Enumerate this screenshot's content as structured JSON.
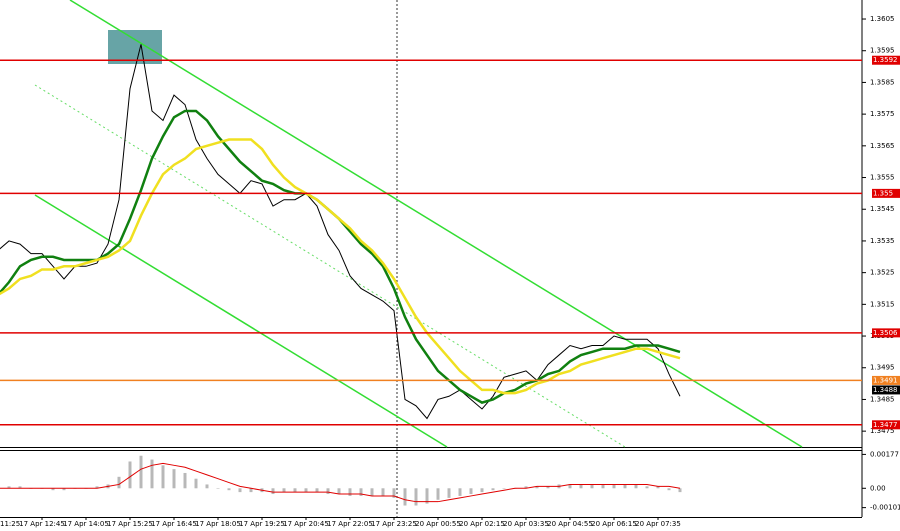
{
  "chart_data": [
    {
      "type": "line",
      "categories": [
        "11:25",
        null,
        null,
        null,
        "17 Apr 12:45",
        null,
        null,
        null,
        "17 Apr 14:05",
        null,
        null,
        null,
        "17 Apr 15:25",
        null,
        null,
        null,
        "17 Apr 16:45",
        null,
        null,
        null,
        "17 Apr 18:05",
        null,
        null,
        null,
        "17 Apr 19:25",
        null,
        null,
        null,
        "17 Apr 20:45",
        null,
        null,
        null,
        "17 Apr 22:05",
        null,
        null,
        null,
        "17 Apr 23:25",
        null,
        null,
        null,
        "20 Apr 00:55",
        null,
        null,
        null,
        "20 Apr 02:15",
        null,
        null,
        null,
        "20 Apr 03:35",
        null,
        null,
        null,
        "20 Apr 04:55",
        null,
        null,
        null,
        "20 Apr 06:15",
        null,
        null,
        null,
        "20 Apr 07:35",
        null,
        null
      ],
      "series": [
        {
          "color": "#000000",
          "values": [
            1.3532,
            1.3535,
            1.3534,
            1.3531,
            1.3531,
            1.3527,
            1.3523,
            1.3527,
            1.3527,
            1.3528,
            1.3534,
            1.3548,
            1.3583,
            1.3597,
            1.3576,
            1.3573,
            1.3581,
            1.3578,
            1.3567,
            1.3561,
            1.3556,
            1.3553,
            1.355,
            1.3554,
            1.3553,
            1.3546,
            1.3548,
            1.3548,
            1.355,
            1.3546,
            1.3537,
            1.3532,
            1.3524,
            1.352,
            1.3518,
            1.3516,
            1.3513,
            1.3485,
            1.3483,
            1.3479,
            1.3485,
            1.3486,
            1.3488,
            1.3485,
            1.3482,
            1.3486,
            1.3492,
            1.3493,
            1.3494,
            1.3491,
            1.3496,
            1.3499,
            1.3502,
            1.3501,
            1.3502,
            1.3502,
            1.3505,
            1.3504,
            1.3504,
            1.3504,
            1.3501,
            1.3493,
            1.3486
          ]
        },
        {
          "color": "#108010",
          "values": [
            1.3518,
            1.3522,
            1.3527,
            1.3529,
            1.353,
            1.353,
            1.3529,
            1.3529,
            1.3529,
            1.3529,
            1.3531,
            1.3534,
            1.3542,
            1.3551,
            1.3561,
            1.3568,
            1.3574,
            1.3576,
            1.3576,
            1.3573,
            1.3568,
            1.3564,
            1.356,
            1.3557,
            1.3554,
            1.3553,
            1.3551,
            1.355,
            1.355,
            1.3548,
            1.3545,
            1.3542,
            1.3538,
            1.3534,
            1.3531,
            1.3527,
            1.352,
            1.3511,
            1.3504,
            1.3499,
            1.3494,
            1.3491,
            1.3488,
            1.3486,
            1.3484,
            1.3485,
            1.3487,
            1.3488,
            1.349,
            1.3491,
            1.3493,
            1.3494,
            1.3497,
            1.3499,
            1.35,
            1.3501,
            1.3501,
            1.3501,
            1.3502,
            1.3502,
            1.3502,
            1.3501,
            1.35
          ]
        },
        {
          "color": "#f0e020",
          "values": [
            1.3518,
            1.352,
            1.3523,
            1.3524,
            1.3526,
            1.3526,
            1.3527,
            1.3527,
            1.3528,
            1.3529,
            1.353,
            1.3532,
            1.3535,
            1.3543,
            1.355,
            1.3556,
            1.3559,
            1.3561,
            1.3564,
            1.3565,
            1.3566,
            1.3567,
            1.3567,
            1.3567,
            1.3564,
            1.3559,
            1.3555,
            1.3552,
            1.355,
            1.3548,
            1.3545,
            1.3542,
            1.3539,
            1.3535,
            1.3532,
            1.3528,
            1.3523,
            1.3517,
            1.3511,
            1.3506,
            1.3502,
            1.3498,
            1.3494,
            1.3491,
            1.3488,
            1.3488,
            1.3487,
            1.3487,
            1.3488,
            1.349,
            1.3491,
            1.3493,
            1.3494,
            1.3496,
            1.3497,
            1.3498,
            1.3499,
            1.35,
            1.3501,
            1.3501,
            1.35,
            1.3499,
            1.3498
          ]
        }
      ],
      "ylim": [
        1.347,
        1.3611
      ],
      "yticks": [
        1.3605,
        1.3595,
        1.3585,
        1.3575,
        1.3565,
        1.3555,
        1.3545,
        1.3535,
        1.3525,
        1.3515,
        1.3505,
        1.3495,
        1.3485,
        1.3475
      ],
      "levels": [
        {
          "value": 1.3592,
          "color": "#e00000"
        },
        {
          "value": 1.355,
          "color": "#e00000"
        },
        {
          "value": 1.3506,
          "color": "#e00000"
        },
        {
          "value": 1.3491,
          "color": "#f08020"
        },
        {
          "value": 1.3477,
          "color": "#e00000"
        }
      ],
      "current": 1.3488
    },
    {
      "type": "bar",
      "series": [
        {
          "color": "#b8b8b8",
          "values": [
            0.0001,
            0.0001,
            0.0001,
            0,
            0,
            -0.0001,
            -0.0001,
            0,
            0,
            0.0001,
            0.0002,
            0.0006,
            0.0014,
            0.0017,
            0.0015,
            0.0012,
            0.001,
            0.0008,
            0.0005,
            0.0002,
            0,
            -0.0001,
            -0.0002,
            -0.0002,
            -0.0002,
            -0.0003,
            -0.0002,
            -0.0002,
            -0.0002,
            -0.0002,
            -0.0003,
            -0.0003,
            -0.0004,
            -0.0004,
            -0.0004,
            -0.0004,
            -0.0005,
            -0.0009,
            -0.0009,
            -0.0008,
            -0.0006,
            -0.0005,
            -0.0004,
            -0.0003,
            -0.0002,
            -0.0001,
            0,
            0,
            0.0001,
            0.0001,
            0.0001,
            0.0002,
            0.0002,
            0.0002,
            0.0002,
            0.0002,
            0.0002,
            0.0002,
            0.0002,
            0.0001,
            0.0001,
            -0.0001,
            -0.0002
          ]
        },
        {
          "color": "#e00000",
          "type": "line",
          "values": [
            0,
            0,
            0,
            0,
            0,
            0,
            0,
            0,
            0,
            0,
            0.0001,
            0.0002,
            0.0006,
            0.001,
            0.0012,
            0.0013,
            0.0012,
            0.0011,
            0.0009,
            0.0007,
            0.0005,
            0.0003,
            0.0001,
            0,
            -0.0001,
            -0.0002,
            -0.0002,
            -0.0002,
            -0.0002,
            -0.0002,
            -0.0002,
            -0.0003,
            -0.0003,
            -0.0003,
            -0.0004,
            -0.0004,
            -0.0004,
            -0.0006,
            -0.0007,
            -0.0007,
            -0.0007,
            -0.0006,
            -0.0005,
            -0.0004,
            -0.0003,
            -0.0002,
            -0.0001,
            0,
            0,
            0.0001,
            0.0001,
            0.0001,
            0.0002,
            0.0002,
            0.0002,
            0.0002,
            0.0002,
            0.0002,
            0.0002,
            0.0002,
            0.0001,
            0.0001,
            0
          ]
        }
      ],
      "ylim": [
        -0.0015,
        0.002
      ],
      "yticks": [
        0.00177,
        {
          "value": 0,
          "label": "0.00"
        },
        -0.00101
      ]
    }
  ]
}
